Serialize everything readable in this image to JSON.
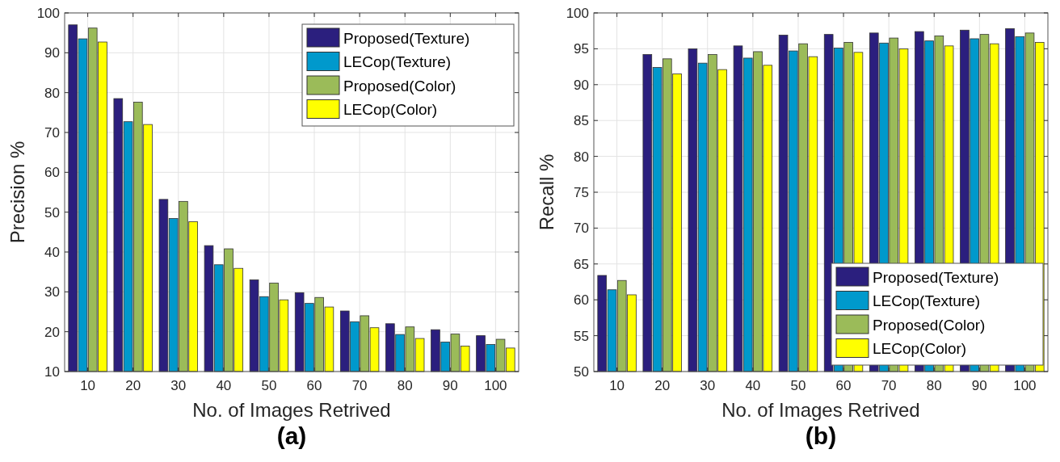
{
  "chart_data": [
    {
      "type": "bar",
      "title": "(a)",
      "xlabel": "No. of Images Retrived",
      "ylabel": "Precision %",
      "categories": [
        "10",
        "20",
        "30",
        "40",
        "50",
        "60",
        "70",
        "80",
        "90",
        "100"
      ],
      "series": [
        {
          "name": "Proposed(Texture)",
          "color": "#2b1f7e",
          "values": [
            97,
            78.5,
            53.2,
            41.6,
            33,
            29.8,
            25.2,
            22,
            20.5,
            19
          ]
        },
        {
          "name": "LECop(Texture)",
          "color": "#0099cc",
          "values": [
            93.5,
            72.7,
            48.4,
            36.8,
            28.8,
            27.1,
            22.5,
            19.3,
            17.4,
            16.8
          ]
        },
        {
          "name": "Proposed(Color)",
          "color": "#9bbb59",
          "values": [
            96.2,
            77.6,
            52.7,
            40.8,
            32.2,
            28.6,
            24,
            21.2,
            19.4,
            18.1
          ]
        },
        {
          "name": "LECop(Color)",
          "color": "#ffff00",
          "values": [
            92.7,
            72,
            47.6,
            35.9,
            28,
            26.2,
            21,
            18.3,
            16.4,
            15.9
          ]
        }
      ],
      "ylim": [
        10,
        100
      ],
      "yticks": [
        10,
        20,
        30,
        40,
        50,
        60,
        70,
        80,
        90,
        100
      ],
      "grid": true,
      "legend": "top right"
    },
    {
      "type": "bar",
      "title": "(b)",
      "xlabel": "No. of Images Retrived",
      "ylabel": "Recall %",
      "categories": [
        "10",
        "20",
        "30",
        "40",
        "50",
        "60",
        "70",
        "80",
        "90",
        "100"
      ],
      "series": [
        {
          "name": "Proposed(Texture)",
          "color": "#2b1f7e",
          "values": [
            63.4,
            94.2,
            95,
            95.4,
            96.9,
            97,
            97.2,
            97.4,
            97.6,
            97.8
          ]
        },
        {
          "name": "LECop(Texture)",
          "color": "#0099cc",
          "values": [
            61.4,
            92.4,
            93,
            93.7,
            94.7,
            95.1,
            95.8,
            96.1,
            96.4,
            96.7
          ]
        },
        {
          "name": "Proposed(Color)",
          "color": "#9bbb59",
          "values": [
            62.7,
            93.6,
            94.2,
            94.6,
            95.7,
            95.9,
            96.5,
            96.8,
            97,
            97.2
          ]
        },
        {
          "name": "LECop(Color)",
          "color": "#ffff00",
          "values": [
            60.7,
            91.5,
            92.1,
            92.7,
            93.9,
            94.5,
            95,
            95.4,
            95.7,
            95.9
          ]
        }
      ],
      "ylim": [
        50,
        100
      ],
      "yticks": [
        50,
        55,
        60,
        65,
        70,
        75,
        80,
        85,
        90,
        95,
        100
      ],
      "grid": true,
      "legend": "bottom right"
    }
  ]
}
